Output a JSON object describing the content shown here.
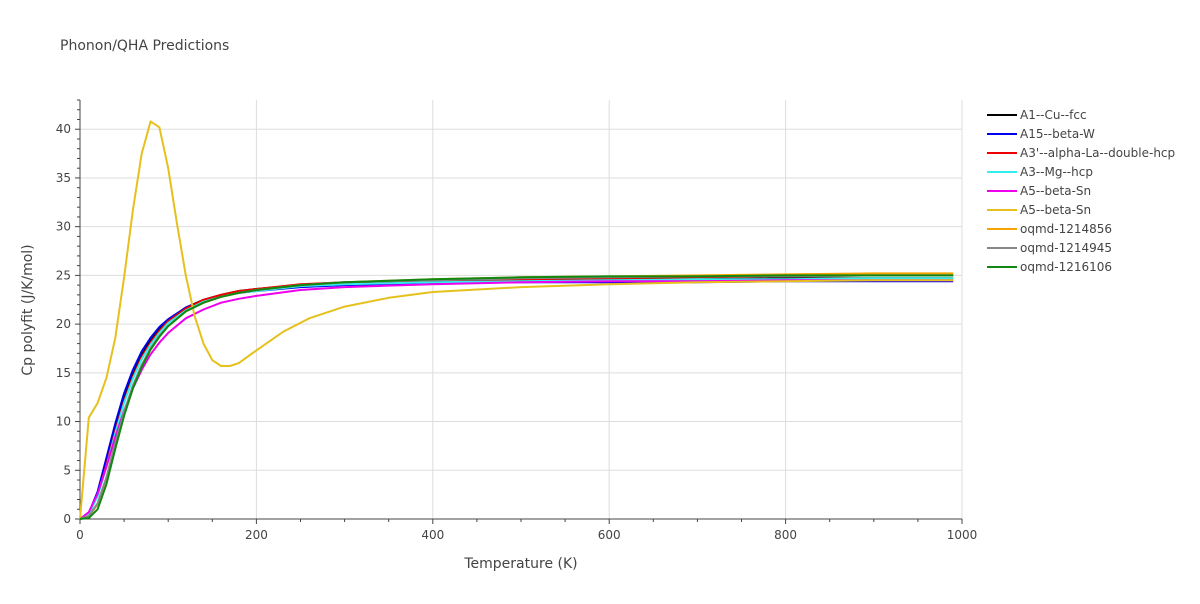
{
  "chart_data": {
    "type": "line",
    "title": "Phonon/QHA Predictions",
    "xlabel": "Temperature (K)",
    "ylabel": "Cp polyfit (J/K/mol)",
    "xlim": [
      0,
      1000
    ],
    "ylim": [
      0,
      43
    ],
    "x_ticks": [
      0,
      200,
      400,
      600,
      800,
      1000
    ],
    "y_ticks": [
      0,
      5,
      10,
      15,
      20,
      25,
      30,
      35,
      40
    ],
    "grid": true,
    "legend_position": "right",
    "series": [
      {
        "name": "A1--Cu--fcc",
        "color": "#000000",
        "x": [
          0,
          10,
          20,
          30,
          40,
          50,
          60,
          70,
          80,
          90,
          100,
          120,
          140,
          160,
          180,
          200,
          250,
          300,
          400,
          500,
          600,
          700,
          800,
          900,
          990
        ],
        "y": [
          0,
          0.6,
          2.6,
          5.8,
          9.2,
          12.3,
          14.8,
          16.8,
          18.3,
          19.5,
          20.4,
          21.7,
          22.5,
          23.0,
          23.4,
          23.6,
          24.0,
          24.2,
          24.4,
          24.5,
          24.6,
          24.6,
          24.7,
          24.7,
          24.7
        ]
      },
      {
        "name": "A15--beta-W",
        "color": "#0000ee",
        "x": [
          0,
          10,
          20,
          30,
          40,
          50,
          60,
          70,
          80,
          90,
          100,
          120,
          140,
          160,
          180,
          200,
          250,
          300,
          400,
          500,
          600,
          700,
          800,
          900,
          990
        ],
        "y": [
          0,
          0.6,
          2.8,
          6.3,
          9.8,
          12.9,
          15.3,
          17.2,
          18.6,
          19.7,
          20.5,
          21.7,
          22.4,
          22.9,
          23.2,
          23.4,
          23.8,
          24.0,
          24.2,
          24.3,
          24.3,
          24.3,
          24.4,
          24.4,
          24.4
        ]
      },
      {
        "name": "A3'--alpha-La--double-hcp",
        "color": "#ee0000",
        "x": [
          0,
          10,
          20,
          30,
          40,
          50,
          60,
          70,
          80,
          90,
          100,
          120,
          140,
          160,
          180,
          200,
          250,
          300,
          400,
          500,
          600,
          700,
          800,
          900,
          990
        ],
        "y": [
          0,
          0.5,
          2.4,
          5.6,
          9.0,
          12.1,
          14.6,
          16.6,
          18.1,
          19.3,
          20.3,
          21.6,
          22.5,
          23.0,
          23.4,
          23.6,
          24.1,
          24.3,
          24.5,
          24.6,
          24.7,
          24.8,
          24.9,
          25.0,
          25.0
        ]
      },
      {
        "name": "A3--Mg--hcp",
        "color": "#33eeee",
        "x": [
          0,
          10,
          20,
          30,
          40,
          50,
          60,
          70,
          80,
          90,
          100,
          120,
          140,
          160,
          180,
          200,
          250,
          300,
          400,
          500,
          600,
          700,
          800,
          900,
          990
        ],
        "y": [
          0,
          0.5,
          2.3,
          5.4,
          8.8,
          11.9,
          14.4,
          16.4,
          17.9,
          19.1,
          20.1,
          21.4,
          22.3,
          22.8,
          23.2,
          23.4,
          23.9,
          24.1,
          24.3,
          24.4,
          24.5,
          24.6,
          24.6,
          24.7,
          24.7
        ]
      },
      {
        "name": "A5--beta-Sn",
        "color": "#ee00ee",
        "x": [
          0,
          10,
          20,
          30,
          40,
          50,
          60,
          70,
          80,
          90,
          100,
          120,
          140,
          160,
          180,
          200,
          250,
          300,
          400,
          500,
          600,
          700,
          800,
          900,
          990
        ],
        "y": [
          0,
          0.7,
          2.6,
          5.4,
          8.4,
          11.1,
          13.4,
          15.3,
          16.9,
          18.1,
          19.1,
          20.6,
          21.5,
          22.2,
          22.6,
          22.9,
          23.5,
          23.8,
          24.1,
          24.3,
          24.4,
          24.4,
          24.5,
          24.5,
          24.5
        ]
      },
      {
        "name": "A5--beta-Sn",
        "color": "#e6c01c",
        "x": [
          0,
          10,
          20,
          30,
          40,
          50,
          60,
          70,
          80,
          90,
          100,
          110,
          120,
          130,
          140,
          150,
          160,
          170,
          180,
          200,
          230,
          260,
          300,
          350,
          400,
          500,
          600,
          700,
          800,
          900,
          990
        ],
        "y": [
          0,
          10.4,
          11.9,
          14.5,
          18.6,
          24.8,
          31.7,
          37.5,
          40.8,
          40.2,
          36.0,
          30.3,
          25.0,
          20.8,
          18.0,
          16.3,
          15.7,
          15.7,
          16.0,
          17.3,
          19.2,
          20.6,
          21.8,
          22.7,
          23.3,
          23.8,
          24.1,
          24.3,
          24.4,
          24.5,
          24.5
        ]
      },
      {
        "name": "oqmd-1214856",
        "color": "#f5a300",
        "x": [
          0,
          10,
          20,
          30,
          40,
          50,
          60,
          70,
          80,
          90,
          100,
          120,
          140,
          160,
          180,
          200,
          250,
          300,
          400,
          500,
          600,
          700,
          800,
          900,
          990
        ],
        "y": [
          0,
          0.3,
          1.5,
          4.2,
          7.7,
          10.9,
          13.6,
          15.8,
          17.5,
          18.8,
          19.8,
          21.3,
          22.2,
          22.8,
          23.2,
          23.5,
          24.0,
          24.3,
          24.6,
          24.8,
          24.9,
          25.0,
          25.1,
          25.2,
          25.2
        ]
      },
      {
        "name": "oqmd-1214945",
        "color": "#888888",
        "x": [
          0,
          10,
          20,
          30,
          40,
          50,
          60,
          70,
          80,
          90,
          100,
          120,
          140,
          160,
          180,
          200,
          250,
          300,
          400,
          500,
          600,
          700,
          800,
          900,
          990
        ],
        "y": [
          0,
          0.3,
          1.6,
          4.3,
          7.8,
          11.0,
          13.7,
          15.8,
          17.5,
          18.8,
          19.8,
          21.3,
          22.2,
          22.8,
          23.2,
          23.5,
          24.0,
          24.3,
          24.5,
          24.7,
          24.8,
          24.9,
          24.9,
          25.0,
          25.0
        ]
      },
      {
        "name": "oqmd-1216106",
        "color": "#118811",
        "x": [
          0,
          10,
          20,
          30,
          40,
          50,
          60,
          70,
          80,
          90,
          100,
          120,
          140,
          160,
          180,
          200,
          250,
          300,
          400,
          500,
          600,
          700,
          800,
          900,
          990
        ],
        "y": [
          0,
          0.1,
          1.0,
          3.6,
          7.2,
          10.6,
          13.4,
          15.6,
          17.4,
          18.7,
          19.8,
          21.3,
          22.2,
          22.8,
          23.2,
          23.5,
          24.0,
          24.3,
          24.6,
          24.8,
          24.9,
          24.9,
          25.0,
          25.0,
          25.0
        ]
      }
    ]
  }
}
